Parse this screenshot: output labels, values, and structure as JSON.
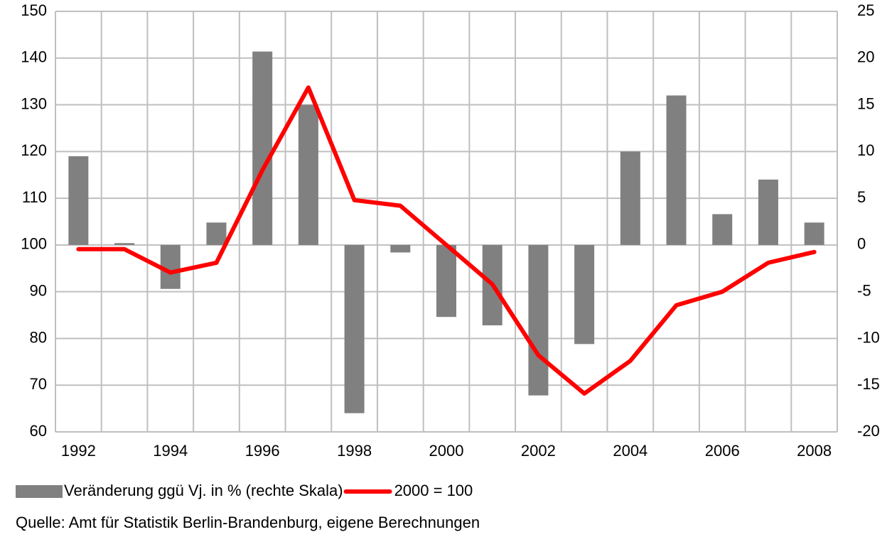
{
  "chart_data": {
    "type": "bar_line",
    "categories": [
      "1992",
      null,
      "1994",
      null,
      "1996",
      null,
      "1998",
      null,
      "2000",
      null,
      "2002",
      null,
      "2004",
      null,
      "2006",
      null,
      "2008"
    ],
    "series": [
      {
        "name": "Veränderung ggü Vj. in % (rechte Skala)",
        "type": "bar",
        "axis": "y2",
        "color": "#808080",
        "values": [
          9.5,
          0.2,
          -4.7,
          2.4,
          20.7,
          15.0,
          -18.0,
          -0.8,
          -7.7,
          -8.6,
          -16.1,
          -10.6,
          10.0,
          16.0,
          3.3,
          7.0,
          2.4
        ]
      },
      {
        "name": "2000 = 100",
        "type": "line",
        "axis": "y",
        "color": "#ff0000",
        "values": [
          99.1,
          99.1,
          94.1,
          96.2,
          116.0,
          133.7,
          109.6,
          108.4,
          100,
          91.6,
          76.4,
          68.2,
          75.2,
          87.1,
          90.0,
          96.2,
          98.5
        ]
      }
    ],
    "ylim": [
      60,
      150
    ],
    "yticks": [
      60,
      70,
      80,
      90,
      100,
      110,
      120,
      130,
      140,
      150
    ],
    "y2lim": [
      -20,
      25
    ],
    "y2ticks": [
      -20,
      -15,
      -10,
      -5,
      0,
      5,
      10,
      15,
      20,
      25
    ],
    "grid": true,
    "legend": "bottom",
    "source": "Quelle: Amt für Statistik Berlin-Brandenburg, eigene Berechnungen"
  }
}
